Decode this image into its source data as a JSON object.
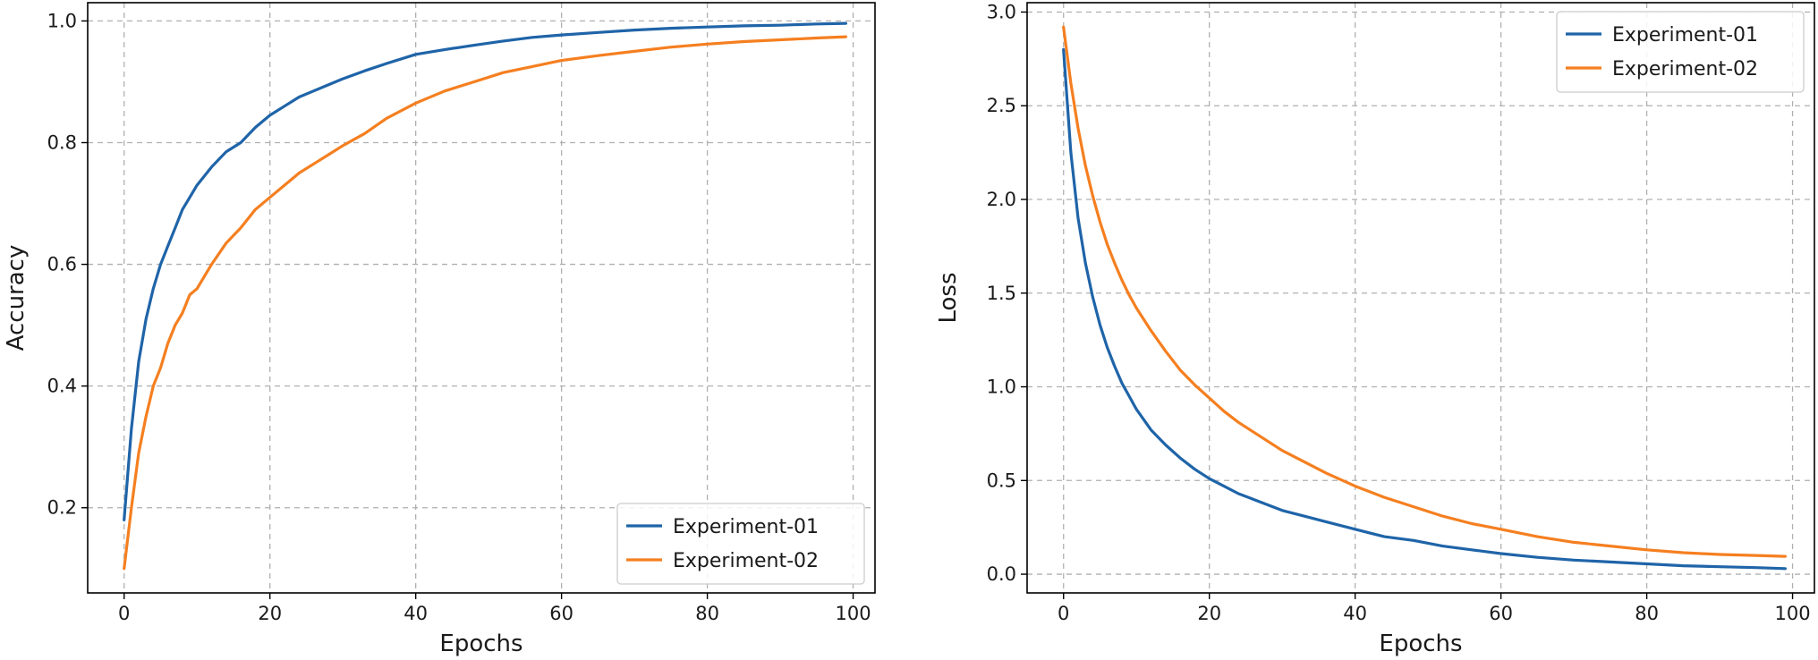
{
  "chart_data": [
    {
      "type": "line",
      "title": "",
      "xlabel": "Epochs",
      "ylabel": "Accuracy",
      "xlim": [
        -5,
        103
      ],
      "ylim": [
        0.06,
        1.03
      ],
      "xticks": [
        0,
        20,
        40,
        60,
        80,
        100
      ],
      "yticks": [
        0.2,
        0.4,
        0.6,
        0.8,
        1.0
      ],
      "ytick_labels": [
        "0.2",
        "0.4",
        "0.6",
        "0.8",
        "1.0"
      ],
      "grid": true,
      "legend_position": "lower-right",
      "series": [
        {
          "name": "Experiment-01",
          "color": "#1f64a8",
          "x": [
            0,
            1,
            2,
            3,
            4,
            5,
            6,
            7,
            8,
            9,
            10,
            12,
            14,
            16,
            18,
            20,
            22,
            24,
            26,
            28,
            30,
            33,
            36,
            40,
            44,
            48,
            52,
            56,
            60,
            65,
            70,
            75,
            80,
            85,
            90,
            95,
            99
          ],
          "values": [
            0.18,
            0.33,
            0.44,
            0.51,
            0.56,
            0.6,
            0.63,
            0.66,
            0.69,
            0.71,
            0.73,
            0.76,
            0.785,
            0.8,
            0.825,
            0.845,
            0.86,
            0.875,
            0.885,
            0.895,
            0.905,
            0.918,
            0.93,
            0.945,
            0.953,
            0.96,
            0.967,
            0.973,
            0.977,
            0.981,
            0.985,
            0.988,
            0.99,
            0.992,
            0.993,
            0.995,
            0.996
          ]
        },
        {
          "name": "Experiment-02",
          "color": "#f57f20",
          "x": [
            0,
            1,
            2,
            3,
            4,
            5,
            6,
            7,
            8,
            9,
            10,
            12,
            14,
            16,
            18,
            20,
            22,
            24,
            26,
            28,
            30,
            33,
            36,
            40,
            44,
            48,
            52,
            56,
            60,
            65,
            70,
            75,
            80,
            85,
            90,
            95,
            99
          ],
          "values": [
            0.1,
            0.2,
            0.29,
            0.35,
            0.4,
            0.43,
            0.47,
            0.5,
            0.52,
            0.55,
            0.56,
            0.6,
            0.635,
            0.66,
            0.69,
            0.71,
            0.73,
            0.75,
            0.765,
            0.78,
            0.795,
            0.815,
            0.84,
            0.865,
            0.885,
            0.9,
            0.915,
            0.925,
            0.935,
            0.943,
            0.95,
            0.957,
            0.962,
            0.966,
            0.969,
            0.972,
            0.974
          ]
        }
      ]
    },
    {
      "type": "line",
      "title": "",
      "xlabel": "Epochs",
      "ylabel": "Loss",
      "xlim": [
        -5,
        103
      ],
      "ylim": [
        -0.1,
        3.05
      ],
      "xticks": [
        0,
        20,
        40,
        60,
        80,
        100
      ],
      "yticks": [
        0.0,
        0.5,
        1.0,
        1.5,
        2.0,
        2.5,
        3.0
      ],
      "ytick_labels": [
        "0.0",
        "0.5",
        "1.0",
        "1.5",
        "2.0",
        "2.5",
        "3.0"
      ],
      "grid": true,
      "legend_position": "top-right",
      "series": [
        {
          "name": "Experiment-01",
          "color": "#1f64a8",
          "x": [
            0,
            1,
            2,
            3,
            4,
            5,
            6,
            7,
            8,
            9,
            10,
            12,
            14,
            16,
            18,
            20,
            22,
            24,
            26,
            28,
            30,
            33,
            36,
            40,
            44,
            48,
            52,
            56,
            60,
            65,
            70,
            75,
            80,
            85,
            90,
            95,
            99
          ],
          "values": [
            2.8,
            2.25,
            1.9,
            1.66,
            1.48,
            1.33,
            1.21,
            1.11,
            1.02,
            0.95,
            0.88,
            0.77,
            0.69,
            0.62,
            0.56,
            0.51,
            0.47,
            0.43,
            0.4,
            0.37,
            0.34,
            0.31,
            0.28,
            0.24,
            0.2,
            0.18,
            0.15,
            0.13,
            0.11,
            0.09,
            0.075,
            0.065,
            0.055,
            0.045,
            0.04,
            0.035,
            0.03
          ]
        },
        {
          "name": "Experiment-02",
          "color": "#f57f20",
          "x": [
            0,
            1,
            2,
            3,
            4,
            5,
            6,
            7,
            8,
            9,
            10,
            12,
            14,
            16,
            18,
            20,
            22,
            24,
            26,
            28,
            30,
            33,
            36,
            40,
            44,
            48,
            52,
            56,
            60,
            65,
            70,
            75,
            80,
            85,
            90,
            95,
            99
          ],
          "values": [
            2.92,
            2.62,
            2.38,
            2.18,
            2.02,
            1.88,
            1.76,
            1.66,
            1.57,
            1.49,
            1.42,
            1.3,
            1.19,
            1.09,
            1.01,
            0.94,
            0.87,
            0.81,
            0.76,
            0.71,
            0.66,
            0.6,
            0.54,
            0.47,
            0.41,
            0.36,
            0.31,
            0.27,
            0.24,
            0.2,
            0.17,
            0.15,
            0.13,
            0.115,
            0.105,
            0.1,
            0.095
          ]
        }
      ]
    }
  ]
}
